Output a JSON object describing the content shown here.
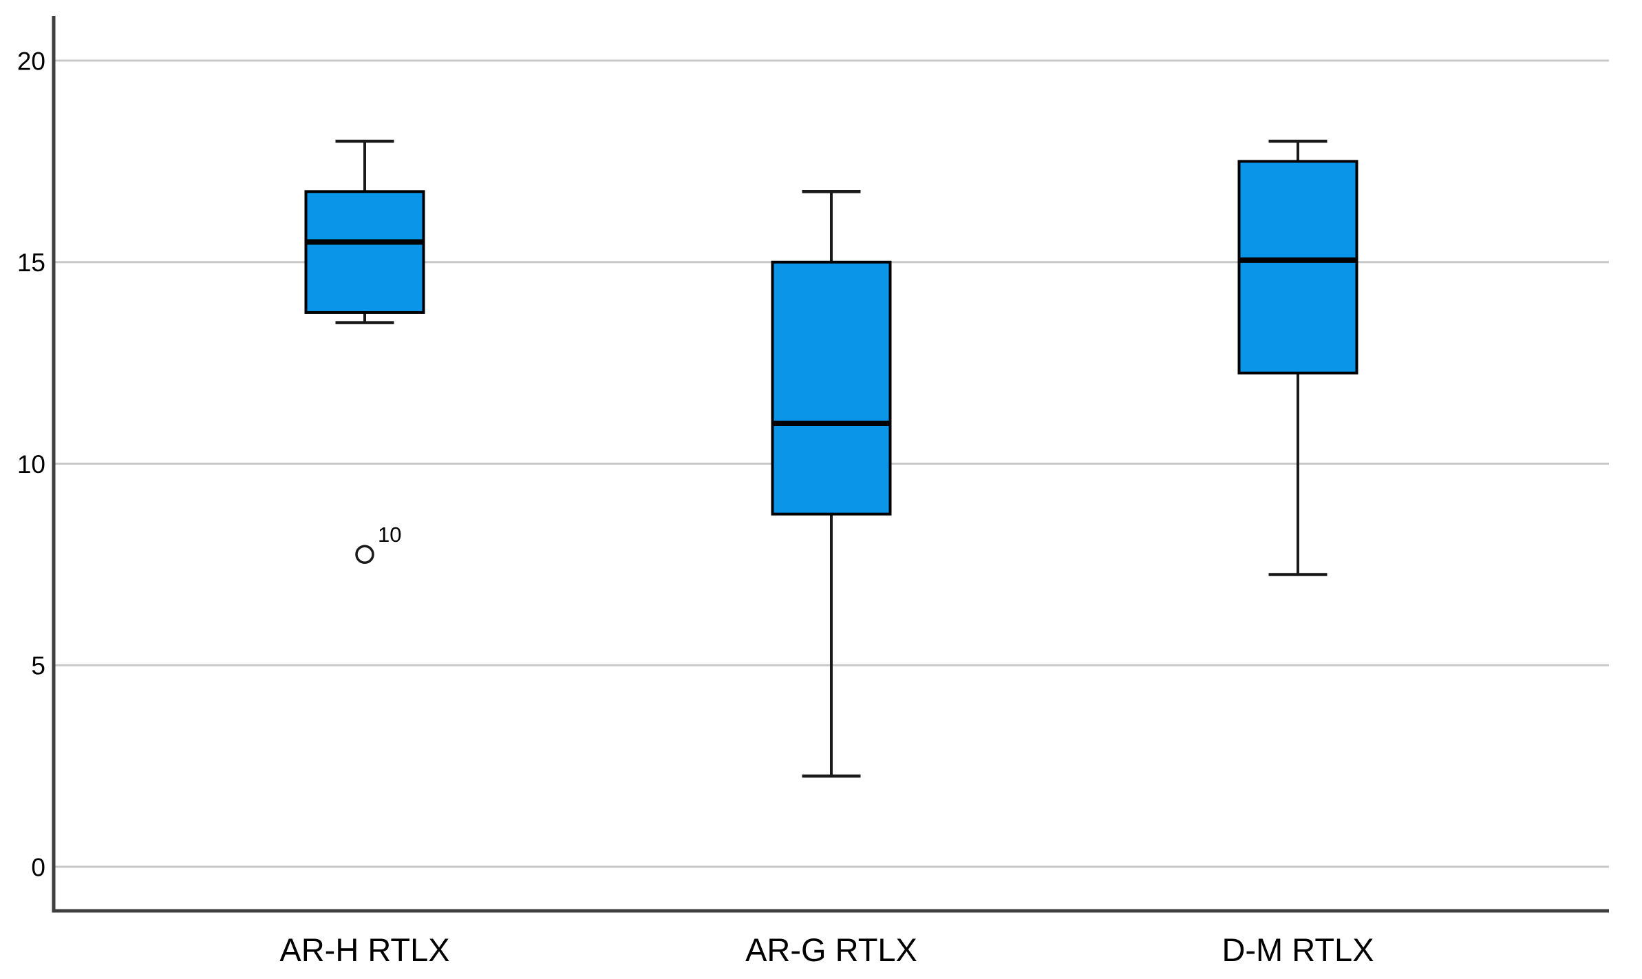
{
  "chart_data": {
    "type": "box",
    "title": "",
    "xlabel": "",
    "ylabel": "",
    "categories": [
      "AR-H RTLX",
      "AR-G RTLX",
      "D-M RTLX"
    ],
    "series": [
      {
        "category": "AR-H RTLX",
        "whisker_low": 13.5,
        "q1": 13.75,
        "median": 15.5,
        "q3": 16.75,
        "whisker_high": 18.0,
        "outliers": [
          {
            "value": 7.75,
            "label": "10"
          }
        ]
      },
      {
        "category": "AR-G RTLX",
        "whisker_low": 2.25,
        "q1": 8.75,
        "median": 11.0,
        "q3": 15.0,
        "whisker_high": 16.75,
        "outliers": []
      },
      {
        "category": "D-M RTLX",
        "whisker_low": 7.25,
        "q1": 12.25,
        "median": 15.05,
        "q3": 17.5,
        "whisker_high": 18.0,
        "outliers": []
      }
    ],
    "yticks": [
      "0",
      "5",
      "10",
      "15",
      "20"
    ],
    "ytick_values": [
      0,
      5,
      10,
      15,
      20
    ],
    "ylim": [
      -1.1,
      21.1
    ],
    "grid": "horizontal",
    "legend": "none",
    "colors": {
      "box_fill": "#0a95e8",
      "box_border": "#000000",
      "median_line": "#000000",
      "whisker": "#1a1a1a",
      "outlier_stroke": "#1a1a1a",
      "gridline": "#c8c8c8",
      "axis_line": "#3f3f3f",
      "text": "#000000",
      "background": "#ffffff"
    }
  }
}
